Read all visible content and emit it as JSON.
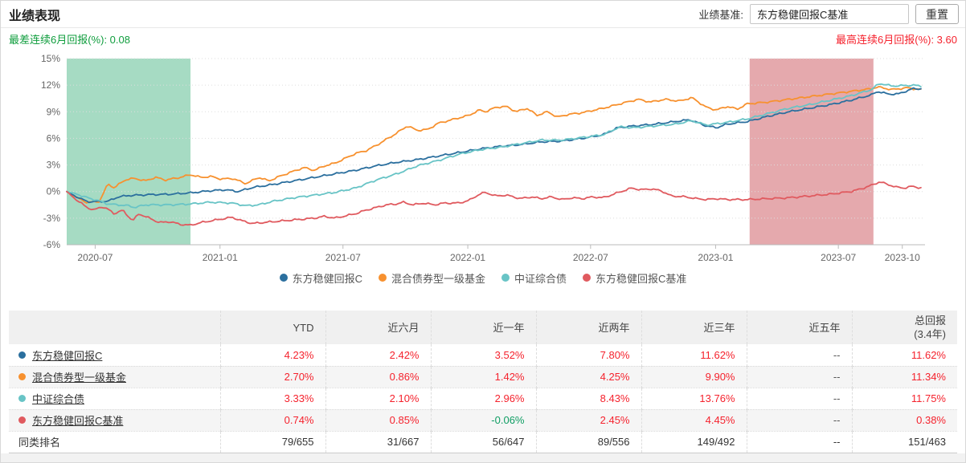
{
  "page": {
    "title": "业绩表现"
  },
  "benchmark": {
    "label": "业绩基准:",
    "value": "东方稳健回报C基准",
    "reset_label": "重置"
  },
  "stats": {
    "worst_label": "最差连续6月回报(%): 0.08",
    "best_label": "最高连续6月回报(%): 3.60"
  },
  "colors": {
    "worst_text": "#0f9d3d",
    "best_text": "#f5222d",
    "value_red": "#f5222d",
    "value_green": "#0e9d63",
    "grid": "#dddddd",
    "axis": "#bbbbbb",
    "axis_text": "#666666"
  },
  "chart_data": {
    "type": "line",
    "title": "",
    "xlabel": "",
    "ylabel": "",
    "ylim": [
      -6,
      15
    ],
    "y_tick_labels": [
      "15%",
      "12%",
      "9%",
      "6%",
      "3%",
      "0%",
      "-3%",
      "-6%"
    ],
    "y_tick_values": [
      15,
      12,
      9,
      6,
      3,
      0,
      -3,
      -6
    ],
    "t_unit": "months since 2020-05-20",
    "t_max": 41.6,
    "x_ticks": [
      {
        "t": 1.38,
        "label": "2020-07"
      },
      {
        "t": 7.43,
        "label": "2021-01"
      },
      {
        "t": 13.39,
        "label": "2021-07"
      },
      {
        "t": 19.44,
        "label": "2022-01"
      },
      {
        "t": 25.39,
        "label": "2022-07"
      },
      {
        "t": 31.45,
        "label": "2023-01"
      },
      {
        "t": 37.4,
        "label": "2023-07"
      },
      {
        "t": 40.5,
        "label": "2023-10"
      }
    ],
    "bands": [
      {
        "from": 0,
        "to": 6,
        "color": "#a6dbc3",
        "meaning": "worst consecutive 6-month window"
      },
      {
        "from": 33.1,
        "to": 39.1,
        "color": "#e5a9ad",
        "meaning": "best consecutive 6-month window"
      }
    ],
    "series": [
      {
        "name": "东方稳健回报C",
        "color": "#2b6f9e",
        "anchors": [
          [
            0,
            0
          ],
          [
            0.4,
            -0.5
          ],
          [
            1,
            -1.15
          ],
          [
            2,
            -1.1
          ],
          [
            2.5,
            -0.6
          ],
          [
            3,
            -0.45
          ],
          [
            4,
            -0.35
          ],
          [
            5,
            -0.3
          ],
          [
            6,
            -0.15
          ],
          [
            7,
            0.1
          ],
          [
            7.7,
            0.2
          ],
          [
            8.3,
            0.0
          ],
          [
            9,
            0.45
          ],
          [
            10,
            0.8
          ],
          [
            11,
            1.2
          ],
          [
            12,
            1.6
          ],
          [
            13,
            2.0
          ],
          [
            14,
            2.4
          ],
          [
            15,
            2.9
          ],
          [
            16,
            3.3
          ],
          [
            17,
            3.6
          ],
          [
            18,
            4.0
          ],
          [
            19,
            4.4
          ],
          [
            20,
            4.8
          ],
          [
            21,
            5.1
          ],
          [
            22,
            5.3
          ],
          [
            23,
            5.6
          ],
          [
            24,
            5.7
          ],
          [
            25,
            6.0
          ],
          [
            26,
            6.4
          ],
          [
            26.7,
            7.2
          ],
          [
            27.5,
            7.4
          ],
          [
            28.5,
            7.6
          ],
          [
            29.5,
            7.9
          ],
          [
            30.2,
            8.1
          ],
          [
            31,
            7.4
          ],
          [
            31.5,
            7.2
          ],
          [
            32,
            7.6
          ],
          [
            33,
            7.9
          ],
          [
            34,
            8.5
          ],
          [
            35,
            9.0
          ],
          [
            36,
            9.4
          ],
          [
            37,
            9.8
          ],
          [
            38,
            10.3
          ],
          [
            39,
            10.9
          ],
          [
            39.3,
            11.3
          ],
          [
            39.8,
            11.0
          ],
          [
            40.3,
            11.0
          ],
          [
            41,
            11.6
          ],
          [
            41.4,
            11.6
          ]
        ]
      },
      {
        "name": "混合债券型一级基金",
        "color": "#f7912f",
        "anchors": [
          [
            0,
            0
          ],
          [
            0.5,
            -0.7
          ],
          [
            1,
            -1.25
          ],
          [
            1.6,
            -1.1
          ],
          [
            2,
            0.9
          ],
          [
            2.3,
            0.4
          ],
          [
            2.8,
            1.3
          ],
          [
            3.3,
            1.5
          ],
          [
            3.8,
            1.2
          ],
          [
            4.3,
            1.6
          ],
          [
            4.8,
            1.3
          ],
          [
            5.5,
            1.6
          ],
          [
            6,
            1.9
          ],
          [
            6.5,
            1.6
          ],
          [
            7,
            1.7
          ],
          [
            7.5,
            1.4
          ],
          [
            8,
            1.5
          ],
          [
            8.7,
            0.9
          ],
          [
            9.3,
            1.6
          ],
          [
            9.8,
            1.2
          ],
          [
            10.3,
            1.7
          ],
          [
            11,
            2.3
          ],
          [
            11.5,
            2.7
          ],
          [
            12,
            2.4
          ],
          [
            12.5,
            2.9
          ],
          [
            13,
            3.2
          ],
          [
            14,
            4.3
          ],
          [
            14.5,
            4.6
          ],
          [
            15,
            5.2
          ],
          [
            16,
            6.6
          ],
          [
            16.5,
            7.4
          ],
          [
            17,
            6.9
          ],
          [
            17.5,
            7.0
          ],
          [
            18,
            7.7
          ],
          [
            19,
            8.3
          ],
          [
            19.5,
            8.6
          ],
          [
            20,
            9.2
          ],
          [
            20.3,
            9.0
          ],
          [
            20.8,
            9.5
          ],
          [
            21.3,
            9.6
          ],
          [
            21.8,
            9.0
          ],
          [
            22.3,
            9.4
          ],
          [
            22.8,
            8.6
          ],
          [
            23.3,
            9.0
          ],
          [
            23.8,
            8.4
          ],
          [
            24.3,
            8.7
          ],
          [
            25,
            8.9
          ],
          [
            26,
            9.4
          ],
          [
            27,
            10.0
          ],
          [
            27.7,
            10.4
          ],
          [
            28.3,
            10.1
          ],
          [
            29,
            10.4
          ],
          [
            29.7,
            10.2
          ],
          [
            30.3,
            10.6
          ],
          [
            31,
            9.5
          ],
          [
            31.5,
            9.2
          ],
          [
            32,
            9.6
          ],
          [
            32.5,
            9.3
          ],
          [
            33,
            9.9
          ],
          [
            34,
            10.1
          ],
          [
            35,
            10.4
          ],
          [
            36,
            10.7
          ],
          [
            37,
            11.0
          ],
          [
            38,
            11.3
          ],
          [
            39,
            11.6
          ],
          [
            39.3,
            11.8
          ],
          [
            40,
            11.5
          ],
          [
            40.7,
            11.7
          ],
          [
            41.4,
            11.5
          ]
        ]
      },
      {
        "name": "中证综合债",
        "color": "#68c4c6",
        "anchors": [
          [
            0,
            0
          ],
          [
            0.5,
            -0.3
          ],
          [
            1,
            -0.7
          ],
          [
            1.5,
            -1.0
          ],
          [
            2,
            -1.4
          ],
          [
            2.5,
            -1.5
          ],
          [
            3,
            -1.6
          ],
          [
            3.3,
            -1.8
          ],
          [
            3.8,
            -1.5
          ],
          [
            5,
            -1.5
          ],
          [
            6,
            -1.4
          ],
          [
            7,
            -1.2
          ],
          [
            8,
            -1.3
          ],
          [
            8.7,
            -1.6
          ],
          [
            9.3,
            -1.5
          ],
          [
            10,
            -1.1
          ],
          [
            11,
            -0.7
          ],
          [
            12,
            -0.4
          ],
          [
            13,
            -0.1
          ],
          [
            14,
            0.4
          ],
          [
            15,
            1.3
          ],
          [
            16,
            2.0
          ],
          [
            17,
            2.9
          ],
          [
            18,
            3.5
          ],
          [
            19,
            4.2
          ],
          [
            20,
            4.7
          ],
          [
            21,
            5.0
          ],
          [
            22,
            5.4
          ],
          [
            23,
            5.8
          ],
          [
            24,
            5.8
          ],
          [
            25,
            6.1
          ],
          [
            26,
            6.4
          ],
          [
            26.8,
            7.3
          ],
          [
            27.5,
            7.2
          ],
          [
            28.5,
            7.4
          ],
          [
            29.5,
            7.6
          ],
          [
            30.3,
            8.0
          ],
          [
            31,
            7.5
          ],
          [
            32,
            7.8
          ],
          [
            33,
            8.2
          ],
          [
            34,
            8.8
          ],
          [
            35,
            9.4
          ],
          [
            36,
            9.8
          ],
          [
            37,
            10.3
          ],
          [
            38,
            10.8
          ],
          [
            39,
            11.5
          ],
          [
            39.4,
            12.2
          ],
          [
            40,
            11.9
          ],
          [
            41,
            12.0
          ],
          [
            41.4,
            11.9
          ]
        ]
      },
      {
        "name": "东方稳健回报C基准",
        "color": "#e05a5f",
        "anchors": [
          [
            0,
            0
          ],
          [
            0.5,
            -1.0
          ],
          [
            1,
            -1.8
          ],
          [
            1.3,
            -2.1
          ],
          [
            1.7,
            -1.7
          ],
          [
            2,
            -2.0
          ],
          [
            2.3,
            -2.5
          ],
          [
            2.7,
            -2.1
          ],
          [
            3.2,
            -3.3
          ],
          [
            3.5,
            -2.5
          ],
          [
            4,
            -3.0
          ],
          [
            4.5,
            -3.5
          ],
          [
            5,
            -3.4
          ],
          [
            5.5,
            -3.7
          ],
          [
            6,
            -3.8
          ],
          [
            6.5,
            -3.5
          ],
          [
            7,
            -3.3
          ],
          [
            7.5,
            -3.1
          ],
          [
            8,
            -2.9
          ],
          [
            8.5,
            -3.3
          ],
          [
            9,
            -3.6
          ],
          [
            9.5,
            -3.5
          ],
          [
            10,
            -3.4
          ],
          [
            11,
            -3.2
          ],
          [
            12,
            -3.0
          ],
          [
            12.5,
            -2.8
          ],
          [
            13,
            -3.0
          ],
          [
            14,
            -2.5
          ],
          [
            14.5,
            -2.1
          ],
          [
            15,
            -1.8
          ],
          [
            15.5,
            -1.5
          ],
          [
            16,
            -1.4
          ],
          [
            16.3,
            -1.2
          ],
          [
            16.8,
            -1.5
          ],
          [
            17.3,
            -1.3
          ],
          [
            17.8,
            -1.5
          ],
          [
            18.3,
            -1.3
          ],
          [
            19,
            -1.3
          ],
          [
            19.5,
            -1.0
          ],
          [
            20,
            -0.3
          ],
          [
            20.3,
            -0.1
          ],
          [
            20.8,
            -0.5
          ],
          [
            21.3,
            -0.4
          ],
          [
            22,
            -0.8
          ],
          [
            22.5,
            -0.6
          ],
          [
            23,
            -0.8
          ],
          [
            23.5,
            -0.6
          ],
          [
            24,
            -0.9
          ],
          [
            24.5,
            -0.7
          ],
          [
            25,
            -0.8
          ],
          [
            25.5,
            -0.6
          ],
          [
            26,
            -0.7
          ],
          [
            26.5,
            -0.3
          ],
          [
            27,
            0.1
          ],
          [
            27.4,
            0.4
          ],
          [
            27.8,
            0.2
          ],
          [
            28.3,
            0.3
          ],
          [
            28.8,
            0.1
          ],
          [
            29.3,
            -0.5
          ],
          [
            30,
            -0.6
          ],
          [
            30.5,
            -0.8
          ],
          [
            31,
            -0.9
          ],
          [
            31.5,
            -0.8
          ],
          [
            32,
            -0.9
          ],
          [
            33,
            -0.9
          ],
          [
            34,
            -0.8
          ],
          [
            35,
            -0.7
          ],
          [
            36,
            -0.5
          ],
          [
            37,
            -0.3
          ],
          [
            38,
            0.0
          ],
          [
            38.5,
            0.3
          ],
          [
            39,
            0.7
          ],
          [
            39.4,
            1.1
          ],
          [
            39.8,
            0.8
          ],
          [
            40.2,
            0.5
          ],
          [
            40.6,
            0.4
          ],
          [
            41,
            0.6
          ],
          [
            41.4,
            0.4
          ]
        ]
      }
    ],
    "legend_position": "bottom",
    "grid": "dotted horizontal"
  },
  "table": {
    "columns": [
      {
        "label": ""
      },
      {
        "label": "YTD"
      },
      {
        "label": "近六月"
      },
      {
        "label": "近一年"
      },
      {
        "label": "近两年"
      },
      {
        "label": "近三年"
      },
      {
        "label": "近五年"
      },
      {
        "label": "总回报",
        "sublabel": "(3.4年)"
      }
    ],
    "rows": [
      {
        "type": "fund",
        "dot": "#2b6f9e",
        "name": "东方稳健回报C",
        "values": [
          "4.23%",
          "2.42%",
          "3.52%",
          "7.80%",
          "11.62%",
          "--",
          "11.62%"
        ]
      },
      {
        "type": "fund",
        "dot": "#f7912f",
        "name": "混合债券型一级基金",
        "values": [
          "2.70%",
          "0.86%",
          "1.42%",
          "4.25%",
          "9.90%",
          "--",
          "11.34%"
        ]
      },
      {
        "type": "fund",
        "dot": "#68c4c6",
        "name": "中证综合债",
        "values": [
          "3.33%",
          "2.10%",
          "2.96%",
          "8.43%",
          "13.76%",
          "--",
          "11.75%"
        ]
      },
      {
        "type": "fund",
        "dot": "#e05a5f",
        "name": "东方稳健回报C基准",
        "values": [
          "0.74%",
          "0.85%",
          "-0.06%",
          "2.45%",
          "4.45%",
          "--",
          "0.38%"
        ]
      },
      {
        "type": "rank",
        "name": "同类排名",
        "values": [
          "79/655",
          "31/667",
          "56/647",
          "89/556",
          "149/492",
          "--",
          "151/463"
        ]
      }
    ]
  }
}
